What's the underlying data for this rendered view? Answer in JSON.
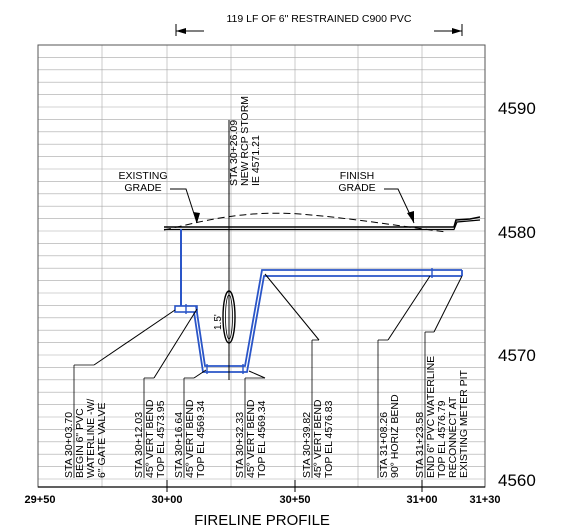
{
  "drawing": {
    "title": "FIRELINE PROFILE",
    "top_dimension": "119 LF OF 6\" RESTRAINED C900 PVC",
    "elevation_labels": [
      "4590",
      "4580",
      "4570",
      "4560"
    ],
    "station_labels": [
      "29+50",
      "30+00",
      "30+50",
      "31+00",
      "31+30"
    ],
    "callouts": {
      "existing_grade": [
        "EXISTING",
        "GRADE"
      ],
      "finish_grade": [
        "FINISH",
        "GRADE"
      ],
      "storm": [
        "STA 30+26.09",
        "NEW RCP STORM",
        "IE 4571.21"
      ],
      "clearance": "1.5'",
      "notes": [
        [
          "STA 30+03.70",
          "BEGIN 6\" PVC",
          "WATERLINE -W/",
          "6\" GATE VALVE"
        ],
        [
          "STA 30+12.03",
          "45° VERT BEND",
          "TOP EL 4573.95"
        ],
        [
          "STA 30+16.64",
          "45° VERT BEND",
          "TOP EL 4569.34"
        ],
        [
          "STA 30+32.33",
          "45° VERT BEND",
          "TOP EL 4569.34"
        ],
        [
          "STA 30+39.82",
          "45° VERT BEND",
          "TOP EL 4576.83"
        ],
        [
          "STA 31+08.26",
          "90° HORIZ BEND"
        ],
        [
          "STA 31+23.58",
          "END 6\" PVC WATERLINE",
          "TOP EL 4576.79",
          "RECONNECT AT",
          "EXISTING METER PIT"
        ]
      ]
    },
    "colors": {
      "pipe": "#2a55c8",
      "lines": "#000000",
      "grid": "#a8a8a8"
    }
  }
}
